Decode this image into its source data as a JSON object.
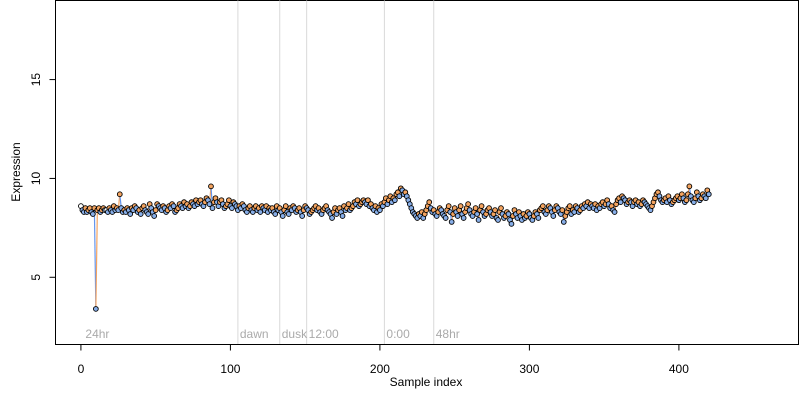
{
  "chart_data": {
    "type": "scatter",
    "xlabel": "Sample index",
    "ylabel": "Expression",
    "xlim": [
      -17,
      480
    ],
    "ylim": [
      1.6,
      19
    ],
    "xticks": [
      0,
      100,
      200,
      300,
      400
    ],
    "yticks": [
      5,
      10,
      15
    ],
    "grid": false,
    "legend": "none",
    "vlines": [
      {
        "x": 105,
        "label": "dawn"
      },
      {
        "x": 133,
        "label": "dusk"
      },
      {
        "x": 151,
        "label": "12:00"
      },
      {
        "x": 203,
        "label": "0:00"
      },
      {
        "x": 236,
        "label": "48hr"
      }
    ],
    "corner_label": {
      "x": 3,
      "label": "24hr"
    },
    "series": [
      {
        "values": [
          8.6,
          8.4,
          8.3,
          8.5,
          8.3,
          8.4,
          8.5,
          8.3,
          8.2,
          8.5,
          3.4,
          8.4,
          8.5,
          8.3,
          8.4,
          8.5,
          8.4,
          8.4,
          8.3,
          8.5,
          8.4,
          8.3,
          8.6,
          8.4,
          8.5,
          8.4,
          9.2,
          8.5,
          8.3,
          8.4,
          8.3,
          8.5,
          8.4,
          8.2,
          8.5,
          8.4,
          8.6,
          8.5,
          8.3,
          8.4,
          8.2,
          8.5,
          8.6,
          8.4,
          8.3,
          8.2,
          8.7,
          8.5,
          8.3,
          8.1,
          8.4,
          8.7,
          8.6,
          8.5,
          8.4,
          8.6,
          8.5,
          8.3,
          8.4,
          8.6,
          8.5,
          8.7,
          8.6,
          8.3,
          8.4,
          8.5,
          8.7,
          8.6,
          8.5,
          8.8,
          8.6,
          8.7,
          8.5,
          8.6,
          8.8,
          8.7,
          8.6,
          8.9,
          8.7,
          8.8,
          8.9,
          8.7,
          8.6,
          8.8,
          9.0,
          8.9,
          8.7,
          9.6,
          8.5,
          8.8,
          9.0,
          8.8,
          8.6,
          8.8,
          8.9,
          8.7,
          8.5,
          8.6,
          8.7,
          8.9,
          8.6,
          8.5,
          8.8,
          8.7,
          8.6,
          8.4,
          8.6,
          8.5,
          8.7,
          8.6,
          8.4,
          8.3,
          8.5,
          8.6,
          8.4,
          8.3,
          8.5,
          8.6,
          8.4,
          8.5,
          8.3,
          8.6,
          8.5,
          8.4,
          8.6,
          8.3,
          8.5,
          8.4,
          8.5,
          8.3,
          8.2,
          8.6,
          8.4,
          8.5,
          8.3,
          8.1,
          8.4,
          8.6,
          8.3,
          8.2,
          8.5,
          8.4,
          8.6,
          8.5,
          8.3,
          8.4,
          8.5,
          8.3,
          8.1,
          8.4,
          8.6,
          8.5,
          8.4,
          8.2,
          8.3,
          8.4,
          8.5,
          8.6,
          8.4,
          8.5,
          8.3,
          8.2,
          8.4,
          8.5,
          8.6,
          8.4,
          8.3,
          8.2,
          8.0,
          8.3,
          8.5,
          8.2,
          8.4,
          8.5,
          8.3,
          8.1,
          8.6,
          8.4,
          8.5,
          8.7,
          8.4,
          8.5,
          8.6,
          8.8,
          8.7,
          8.9,
          8.6,
          8.7,
          8.8,
          8.9,
          8.8,
          8.7,
          8.9,
          8.6,
          8.7,
          8.5,
          8.4,
          8.6,
          8.3,
          8.5,
          8.4,
          8.7,
          8.6,
          8.8,
          9.0,
          8.7,
          8.9,
          9.1,
          8.8,
          9.0,
          8.9,
          9.2,
          9.3,
          9.1,
          9.5,
          9.4,
          9.2,
          9.3,
          9.1,
          8.9,
          8.7,
          8.5,
          8.3,
          8.2,
          8.1,
          8.0,
          8.2,
          8.1,
          8.3,
          8.0,
          8.2,
          8.4,
          8.6,
          8.8,
          8.5,
          8.3,
          8.4,
          8.2,
          8.1,
          8.3,
          8.5,
          8.4,
          8.2,
          8.1,
          8.0,
          8.4,
          8.6,
          8.3,
          7.8,
          8.2,
          8.5,
          8.3,
          8.1,
          8.4,
          8.6,
          8.2,
          8.0,
          8.3,
          8.5,
          8.7,
          8.4,
          8.2,
          8.1,
          8.3,
          8.5,
          8.2,
          7.9,
          8.4,
          8.6,
          8.3,
          8.1,
          8.2,
          8.4,
          8.5,
          8.3,
          8.1,
          8.2,
          8.4,
          8.0,
          7.9,
          8.3,
          8.5,
          8.2,
          8.0,
          8.1,
          8.3,
          8.2,
          7.9,
          7.7,
          8.1,
          8.4,
          8.2,
          8.0,
          8.3,
          8.1,
          7.9,
          8.2,
          8.0,
          8.1,
          8.3,
          8.2,
          8.0,
          7.9,
          8.1,
          8.3,
          8.2,
          8.0,
          8.4,
          8.5,
          8.6,
          8.3,
          8.2,
          8.4,
          8.6,
          8.5,
          8.3,
          8.1,
          8.4,
          8.6,
          8.5,
          8.3,
          8.2,
          8.4,
          7.8,
          8.1,
          8.3,
          8.5,
          8.6,
          8.2,
          8.4,
          8.3,
          8.6,
          8.5,
          8.3,
          8.4,
          8.6,
          8.5,
          8.7,
          8.6,
          8.8,
          8.5,
          8.7,
          8.6,
          8.5,
          8.7,
          8.4,
          8.6,
          8.5,
          8.7,
          8.8,
          8.6,
          8.7,
          8.9,
          8.7,
          8.5,
          8.6,
          8.4,
          8.3,
          8.7,
          8.9,
          9.0,
          8.8,
          9.1,
          9.0,
          8.9,
          8.7,
          8.8,
          8.9,
          8.8,
          8.6,
          8.8,
          8.9,
          8.7,
          8.8,
          8.6,
          8.7,
          8.9,
          8.8,
          8.7,
          8.6,
          8.5,
          8.4,
          8.6,
          8.8,
          9.0,
          9.2,
          9.3,
          9.1,
          8.9,
          8.8,
          8.9,
          9.0,
          8.8,
          9.1,
          8.9,
          8.7,
          8.8,
          8.9,
          9.0,
          9.1,
          8.9,
          9.0,
          9.2,
          9.0,
          8.8,
          8.9,
          9.2,
          9.6,
          9.1,
          8.9,
          8.8,
          9.0,
          9.3,
          9.1,
          8.9,
          9.0,
          9.2,
          9.1,
          9.0,
          9.4,
          9.2
        ]
      }
    ]
  }
}
